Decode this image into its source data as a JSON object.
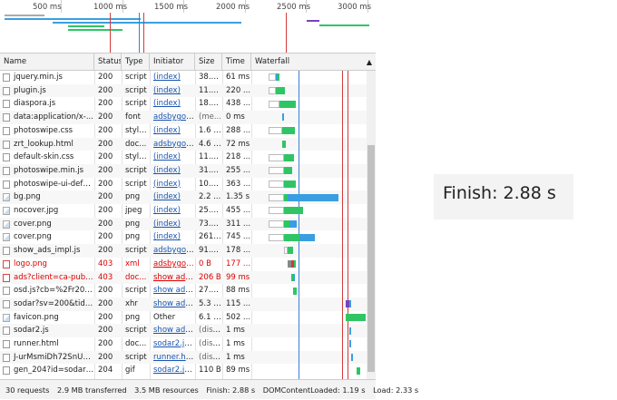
{
  "overview": {
    "tick_labels": [
      "500 ms",
      "1000 ms",
      "1500 ms",
      "2000 ms",
      "2500 ms",
      "3000 ms"
    ]
  },
  "columns": [
    "Name",
    "Status",
    "Type",
    "Initiator",
    "Size",
    "Time",
    "Waterfall"
  ],
  "rows": [
    {
      "name": "jquery.min.js",
      "status": "200",
      "type": "script",
      "initiator": "(index)",
      "size": "38.2...",
      "time": "61 ms",
      "icon": "file",
      "error": false
    },
    {
      "name": "plugin.js",
      "status": "200",
      "type": "script",
      "initiator": "(index)",
      "size": "11.8...",
      "time": "220 ...",
      "icon": "file",
      "error": false
    },
    {
      "name": "diaspora.js",
      "status": "200",
      "type": "script",
      "initiator": "(index)",
      "size": "18.5...",
      "time": "438 ...",
      "icon": "file",
      "error": false
    },
    {
      "name": "data:application/x-...",
      "status": "200",
      "type": "font",
      "initiator": "adsbygoo...",
      "size": "(me...",
      "time": "0 ms",
      "icon": "file",
      "error": false
    },
    {
      "name": "photoswipe.css",
      "status": "200",
      "type": "style...",
      "initiator": "(index)",
      "size": "1.6 KB",
      "time": "288 ...",
      "icon": "file",
      "error": false
    },
    {
      "name": "zrt_lookup.html",
      "status": "200",
      "type": "doc...",
      "initiator": "adsbygoo...",
      "size": "4.6 KB",
      "time": "72 ms",
      "icon": "file",
      "error": false
    },
    {
      "name": "default-skin.css",
      "status": "200",
      "type": "style...",
      "initiator": "(index)",
      "size": "11.7...",
      "time": "218 ...",
      "icon": "file",
      "error": false
    },
    {
      "name": "photoswipe.min.js",
      "status": "200",
      "type": "script",
      "initiator": "(index)",
      "size": "31.6...",
      "time": "255 ...",
      "icon": "file",
      "error": false
    },
    {
      "name": "photoswipe-ui-defa...",
      "status": "200",
      "type": "script",
      "initiator": "(index)",
      "size": "10.1...",
      "time": "363 ...",
      "icon": "file",
      "error": false
    },
    {
      "name": "bg.png",
      "status": "200",
      "type": "png",
      "initiator": "(index)",
      "size": "2.2 ...",
      "time": "1.35 s",
      "icon": "img",
      "error": false
    },
    {
      "name": "nocover.jpg",
      "status": "200",
      "type": "jpeg",
      "initiator": "(index)",
      "size": "25.8...",
      "time": "455 ...",
      "icon": "img",
      "error": false
    },
    {
      "name": "cover.png",
      "status": "200",
      "type": "png",
      "initiator": "(index)",
      "size": "73.1...",
      "time": "311 ...",
      "icon": "img",
      "error": false
    },
    {
      "name": "cover.png",
      "status": "200",
      "type": "png",
      "initiator": "(index)",
      "size": "261 ...",
      "time": "745 ...",
      "icon": "img",
      "error": false
    },
    {
      "name": "show_ads_impl.js",
      "status": "200",
      "type": "script",
      "initiator": "adsbygoo...",
      "size": "91.9...",
      "time": "178 ...",
      "icon": "file",
      "error": false
    },
    {
      "name": "logo.png",
      "status": "403",
      "type": "xml",
      "initiator": "adsbygoo...",
      "size": "0 B",
      "time": "177 ...",
      "icon": "red",
      "error": true
    },
    {
      "name": "ads?client=ca-pub-8...",
      "status": "403",
      "type": "doc...",
      "initiator": "show ads...",
      "size": "206 B",
      "time": "99 ms",
      "icon": "red",
      "error": true
    },
    {
      "name": "osd.js?cb=%2Fr2010...",
      "status": "200",
      "type": "script",
      "initiator": "show ads...",
      "size": "27.4...",
      "time": "88 ms",
      "icon": "file",
      "error": false
    },
    {
      "name": "sodar?sv=200&tid=...",
      "status": "200",
      "type": "xhr",
      "initiator": "show ads...",
      "size": "5.3 KB",
      "time": "115 ...",
      "icon": "file",
      "error": false
    },
    {
      "name": "favicon.png",
      "status": "200",
      "type": "png",
      "initiator": "Other",
      "size": "6.1 KB",
      "time": "502 ...",
      "icon": "img",
      "error": false
    },
    {
      "name": "sodar2.js",
      "status": "200",
      "type": "script",
      "initiator": "show ads...",
      "size": "(disk...",
      "time": "1 ms",
      "icon": "file",
      "error": false
    },
    {
      "name": "runner.html",
      "status": "200",
      "type": "doc...",
      "initiator": "sodar2.js:20",
      "size": "(disk...",
      "time": "1 ms",
      "icon": "file",
      "error": false
    },
    {
      "name": "J-urMsmiDh72SnUqr...",
      "status": "200",
      "type": "script",
      "initiator": "runner.ht...",
      "size": "(disk...",
      "time": "1 ms",
      "icon": "file",
      "error": false
    },
    {
      "name": "gen_204?id=sodar2...",
      "status": "204",
      "type": "gif",
      "initiator": "sodar2.js:24",
      "size": "110 B",
      "time": "89 ms",
      "icon": "file",
      "error": false
    }
  ],
  "status_bar": {
    "requests": "30 requests",
    "transferred": "2.9 MB transferred",
    "resources": "3.5 MB resources",
    "finish": "Finish: 2.88 s",
    "dom": "DOMContentLoaded: 1.19 s",
    "load": "Load: 2.33 s"
  },
  "callout": {
    "text": "Finish: 2.88 s"
  },
  "colors": {
    "receiving": "#2fc564",
    "waiting": "#3a9fe0",
    "dom_line": "#3a7fd6",
    "load_line": "#d23b3b",
    "error_text": "#dd0000",
    "link": "#1a55b0"
  },
  "icons": {
    "sort": "triangle-up-icon",
    "file": "file-icon",
    "image": "image-file-icon"
  }
}
